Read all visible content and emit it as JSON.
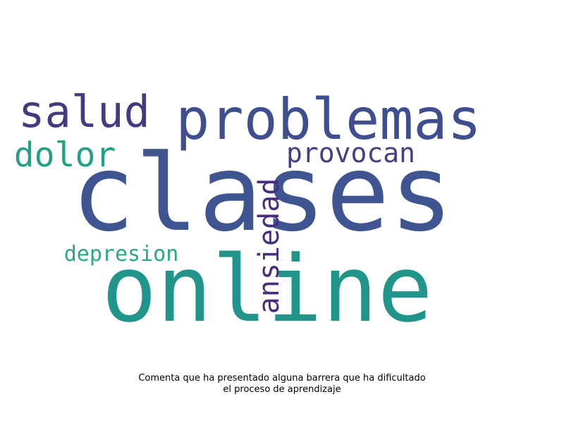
{
  "words": [
    {
      "text": "clases",
      "color": "#3e5592"
    },
    {
      "text": "online",
      "color": "#22958b"
    },
    {
      "text": "problemas",
      "color": "#3e4e8e"
    },
    {
      "text": "salud",
      "color": "#433b7f"
    },
    {
      "text": "provocan",
      "color": "#433f83"
    },
    {
      "text": "dolor",
      "color": "#24a084"
    },
    {
      "text": "depresion",
      "color": "#2ca881"
    },
    {
      "text": "ansiedad",
      "color": "#472d7a"
    }
  ],
  "caption": {
    "line1": "Comenta que ha presentado alguna barrera que ha dificultado",
    "line2": "el proceso de aprendizaje"
  }
}
